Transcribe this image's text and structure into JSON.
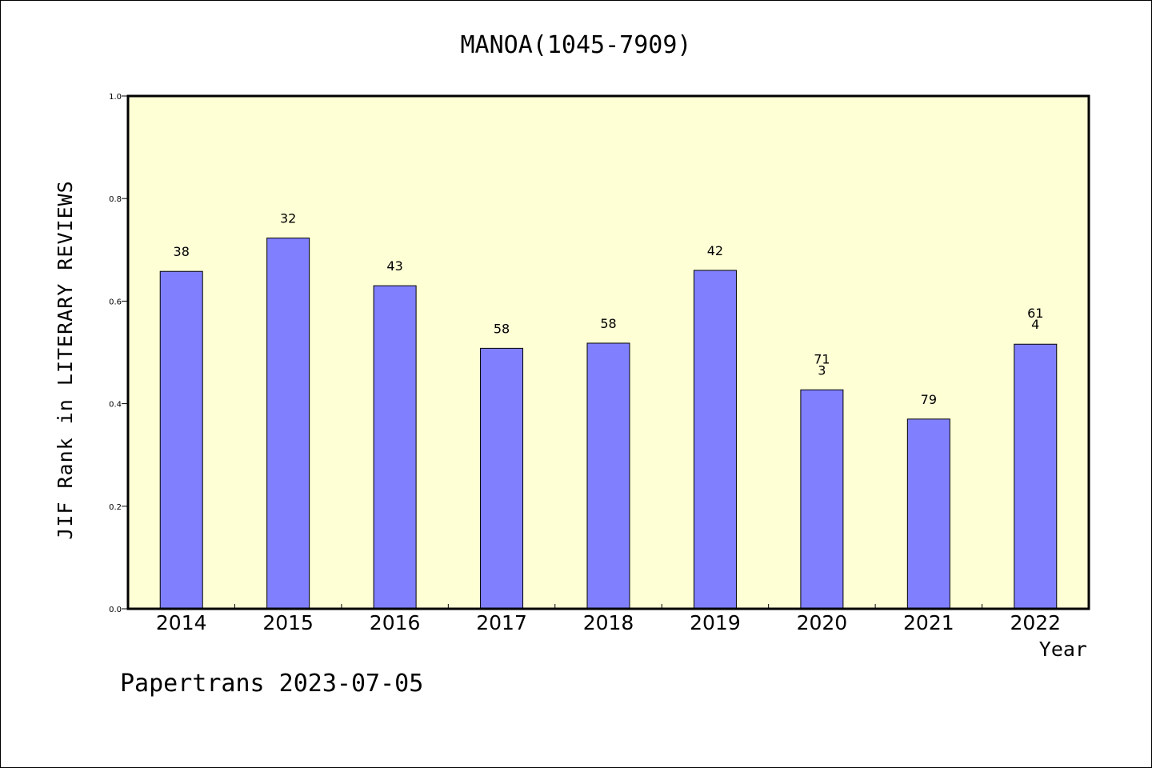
{
  "chart_data": {
    "type": "bar",
    "title": "MANOA(1045-7909)",
    "xlabel": "Year",
    "ylabel": "JIF Rank in LITERARY REVIEWS",
    "categories": [
      "2014",
      "2015",
      "2016",
      "2017",
      "2018",
      "2019",
      "2020",
      "2021",
      "2022"
    ],
    "values": [
      0.658,
      0.723,
      0.63,
      0.508,
      0.518,
      0.66,
      0.427,
      0.37,
      0.516
    ],
    "data_labels": [
      [
        "38"
      ],
      [
        "32"
      ],
      [
        "43"
      ],
      [
        "58"
      ],
      [
        "58"
      ],
      [
        "42"
      ],
      [
        "71",
        "3"
      ],
      [
        "79"
      ],
      [
        "61",
        "4"
      ]
    ],
    "ylim": [
      0,
      1.0
    ],
    "yticks": [
      "0.0",
      "0.2",
      "0.4",
      "0.6",
      "0.8",
      "1.0"
    ],
    "grid": false,
    "colors": {
      "bar": "#8080ff",
      "plot_background": "#ffffd6",
      "axis": "#000000"
    }
  },
  "footer": "Papertrans 2023-07-05"
}
